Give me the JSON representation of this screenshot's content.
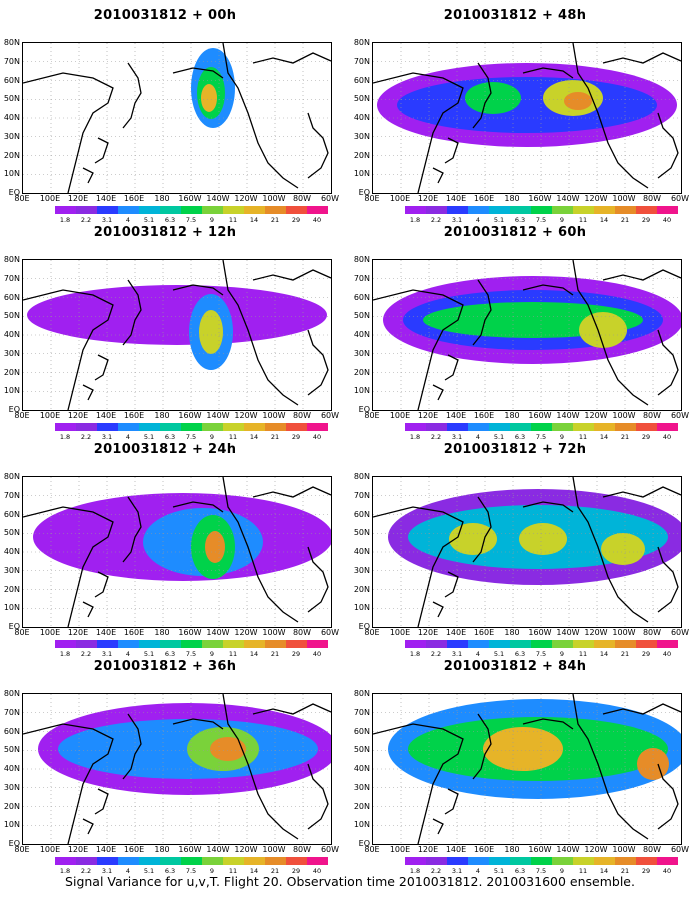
{
  "caption": "Signal Variance for u,v,T. Flight 20. Observation time 2010031812. 2010031600 ensemble.",
  "panels": [
    {
      "title": "2010031812 + 00h"
    },
    {
      "title": "2010031812 + 48h"
    },
    {
      "title": "2010031812 + 12h"
    },
    {
      "title": "2010031812 + 60h"
    },
    {
      "title": "2010031812 + 24h"
    },
    {
      "title": "2010031812 + 72h"
    },
    {
      "title": "2010031812 + 36h"
    },
    {
      "title": "2010031812 + 84h"
    }
  ],
  "lat_labels": [
    "80N",
    "70N",
    "60N",
    "50N",
    "40N",
    "30N",
    "20N",
    "10N",
    "EQ"
  ],
  "lon_labels": [
    "80E",
    "100E",
    "120E",
    "140E",
    "160E",
    "180",
    "160W",
    "140W",
    "120W",
    "100W",
    "80W",
    "60W"
  ],
  "colorbar": {
    "labels": [
      "1.8",
      "2.2",
      "3.1",
      "4",
      "5.1",
      "6.3",
      "7.5",
      "9",
      "11",
      "14",
      "21",
      "29",
      "40"
    ],
    "colors": [
      "#a020f0",
      "#8a2be2",
      "#2a3bff",
      "#1e8cff",
      "#00b4d8",
      "#00c8a0",
      "#00d24a",
      "#7ad23a",
      "#c8d22a",
      "#e6b428",
      "#e68c28",
      "#f0503c",
      "#f0148c"
    ]
  }
}
